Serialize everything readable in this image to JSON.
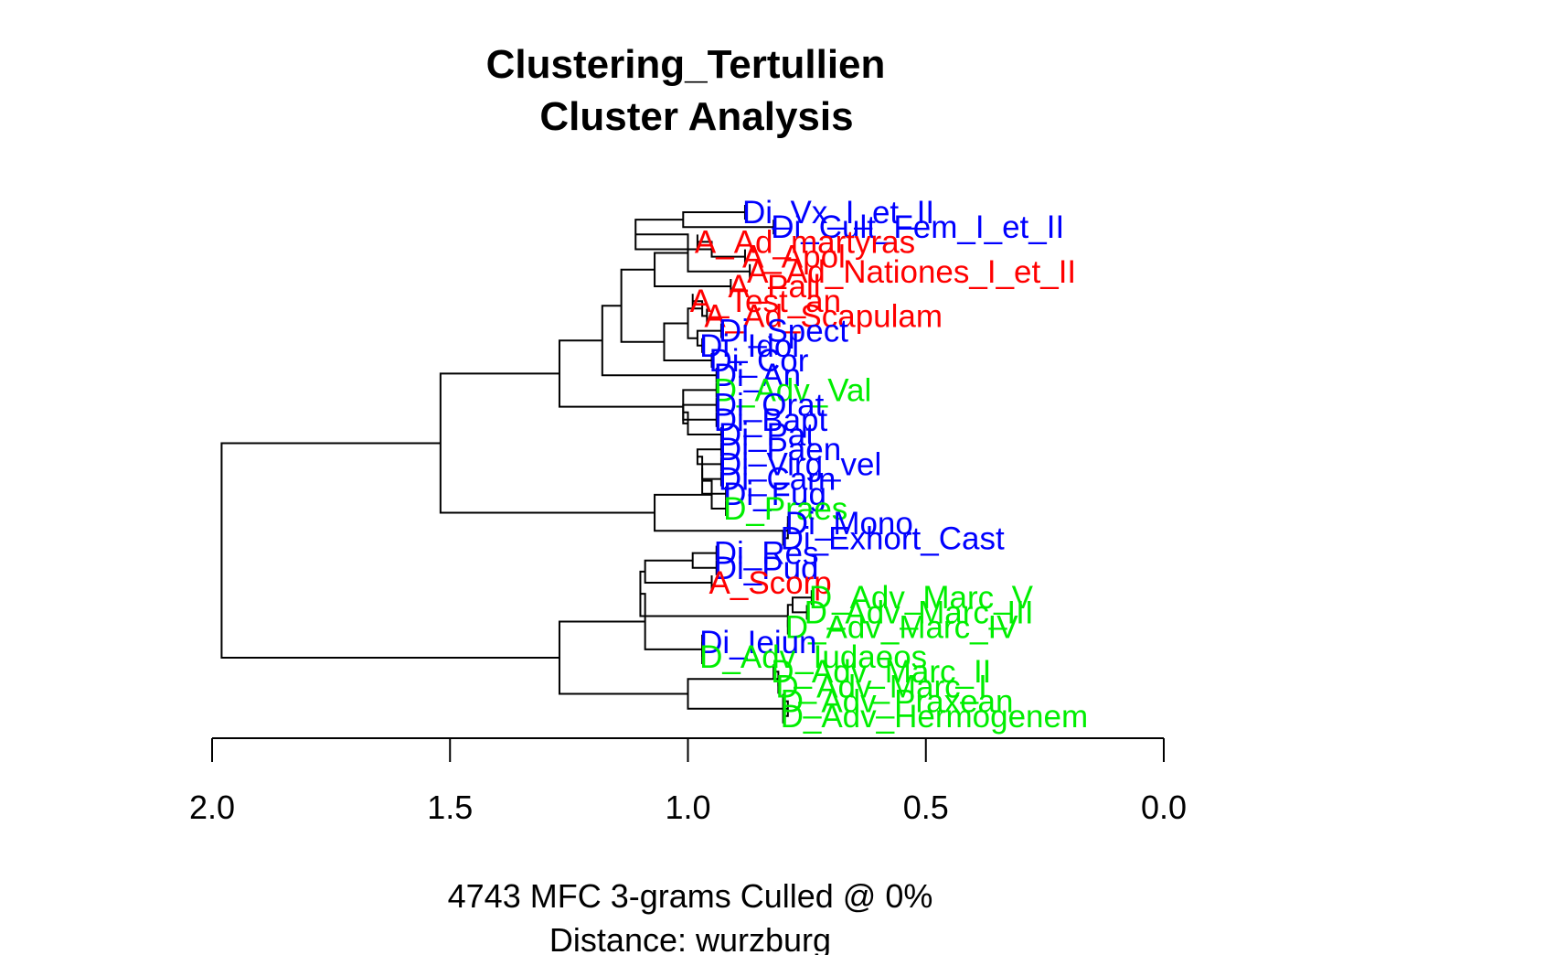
{
  "chart_data": {
    "type": "dendrogram",
    "title": "Clustering_Tertullien",
    "subtitle": "Cluster Analysis",
    "xlabel_lines": [
      "4743 MFC 3-grams Culled @ 0%",
      "Distance: wurzburg"
    ],
    "xlim": [
      2.0,
      0.0
    ],
    "ticks": [
      2.0,
      1.5,
      1.0,
      0.5,
      0.0
    ],
    "tick_labels": [
      "2.0",
      "1.5",
      "1.0",
      "0.5",
      "0.0"
    ],
    "colors": {
      "A": "#ff0000",
      "Di": "#0000ff",
      "D": "#00ee00"
    },
    "leaves": [
      {
        "label": "Di_Vx_I_et_II",
        "group": "Di",
        "height": 0.88
      },
      {
        "label": "Di_Cult_Fem_I_et_II",
        "group": "Di",
        "height": 0.82
      },
      {
        "label": "A_Ad_martyras",
        "group": "A",
        "height": 0.98
      },
      {
        "label": "A_Apol",
        "group": "A",
        "height": 0.88
      },
      {
        "label": "A_Ad_Nationes_I_et_II",
        "group": "A",
        "height": 0.87
      },
      {
        "label": "A_Pall",
        "group": "A",
        "height": 0.91
      },
      {
        "label": "A_Test_an",
        "group": "A",
        "height": 0.99
      },
      {
        "label": "A_Ad_Scapulam",
        "group": "A",
        "height": 0.96
      },
      {
        "label": "Di_Spect",
        "group": "Di",
        "height": 0.93
      },
      {
        "label": "Di_Idol",
        "group": "Di",
        "height": 0.97
      },
      {
        "label": "Di_Cor",
        "group": "Di",
        "height": 0.95
      },
      {
        "label": "Di_An",
        "group": "Di",
        "height": 0.94
      },
      {
        "label": "D_Adv_Val",
        "group": "D",
        "height": 0.94
      },
      {
        "label": "Di_Orat",
        "group": "Di",
        "height": 0.94
      },
      {
        "label": "Di_Bapt",
        "group": "Di",
        "height": 0.94
      },
      {
        "label": "Di_Pat",
        "group": "Di",
        "height": 0.93
      },
      {
        "label": "Di_Paen",
        "group": "Di",
        "height": 0.93
      },
      {
        "label": "Di_Virg_vel",
        "group": "Di",
        "height": 0.93
      },
      {
        "label": "Di_Carn",
        "group": "Di",
        "height": 0.93
      },
      {
        "label": "Di_Fug",
        "group": "Di",
        "height": 0.92
      },
      {
        "label": "D_Praes",
        "group": "D",
        "height": 0.92
      },
      {
        "label": "Di_Mono",
        "group": "Di",
        "height": 0.79
      },
      {
        "label": "Di_Exhort_Cast",
        "group": "Di",
        "height": 0.8
      },
      {
        "label": "Di_Res",
        "group": "Di",
        "height": 0.94
      },
      {
        "label": "Di_Pud",
        "group": "Di",
        "height": 0.94
      },
      {
        "label": "A_Scorp",
        "group": "A",
        "height": 0.95
      },
      {
        "label": "D_Adv_Marc_V",
        "group": "D",
        "height": 0.74
      },
      {
        "label": "D_Adv_Marc_III",
        "group": "D",
        "height": 0.75
      },
      {
        "label": "D_Adv_Marc_IV",
        "group": "D",
        "height": 0.79
      },
      {
        "label": "Di_Ieiun",
        "group": "Di",
        "height": 0.97
      },
      {
        "label": "D_Adv_Iudaeos",
        "group": "D",
        "height": 0.97
      },
      {
        "label": "D_Adv_Marc_II",
        "group": "D",
        "height": 0.82
      },
      {
        "label": "D_Adv_Marc_I",
        "group": "D",
        "height": 0.81
      },
      {
        "label": "D_Adv_Praxean",
        "group": "D",
        "height": 0.8
      },
      {
        "label": "D_Adv_Hermogenem",
        "group": "D",
        "height": 0.8
      }
    ],
    "merges": [
      {
        "height": 1.01,
        "a": "Di_Vx_I_et_II",
        "b": "Di_Cult_Fem_I_et_II"
      },
      {
        "height": 0.95,
        "a": "A_Ad_martyras",
        "b": "A_Apol"
      },
      {
        "height": 1.11,
        "a": 0,
        "b": 1
      },
      {
        "height": 1.0,
        "a": "A_Ad_Nationes_I_et_II",
        "b": 2
      },
      {
        "height": 1.07,
        "a": "A_Pall",
        "b": 3
      },
      {
        "height": 0.97,
        "a": "A_Test_an",
        "b": "A_Ad_Scapulam"
      },
      {
        "height": 0.98,
        "a": "Di_Spect",
        "b": "Di_Idol"
      },
      {
        "height": 1.0,
        "a": 5,
        "b": 6
      },
      {
        "height": 1.05,
        "a": "Di_Cor",
        "b": 7
      },
      {
        "height": 1.14,
        "a": 4,
        "b": 8
      },
      {
        "height": 1.18,
        "a": "Di_An",
        "b": 9
      },
      {
        "height": 1.01,
        "a": "Di_Orat",
        "b": "Di_Bapt"
      },
      {
        "height": 1.0,
        "a": 11,
        "b": "Di_Pat"
      },
      {
        "height": 1.01,
        "a": "D_Adv_Val",
        "b": 12
      },
      {
        "height": 1.27,
        "a": 10,
        "b": 13
      },
      {
        "height": 0.98,
        "a": "Di_Paen",
        "b": "Di_Virg_vel"
      },
      {
        "height": 0.97,
        "a": 15,
        "b": "Di_Carn"
      },
      {
        "height": 0.97,
        "a": 16,
        "b": "Di_Fug"
      },
      {
        "height": 0.95,
        "a": "D_Praes",
        "b": 17
      },
      {
        "height": 0.79,
        "a": "Di_Mono",
        "b": "Di_Exhort_Cast"
      },
      {
        "height": 1.07,
        "a": 18,
        "b": 19
      },
      {
        "height": 1.52,
        "a": 14,
        "b": 20
      },
      {
        "height": 0.99,
        "a": "Di_Res",
        "b": "Di_Pud"
      },
      {
        "height": 0.78,
        "a": "D_Adv_Marc_V",
        "b": "D_Adv_Marc_III"
      },
      {
        "height": 0.79,
        "a": 23,
        "b": "D_Adv_Marc_IV"
      },
      {
        "height": 1.09,
        "a": 22,
        "b": "A_Scorp"
      },
      {
        "height": 1.1,
        "a": 25,
        "b": 24
      },
      {
        "height": 0.97,
        "a": "Di_Ieiun",
        "b": "D_Adv_Iudaeos"
      },
      {
        "height": 1.09,
        "a": 26,
        "b": 27
      },
      {
        "height": 0.81,
        "a": "D_Adv_Marc_II",
        "b": "D_Adv_Marc_I"
      },
      {
        "height": 0.79,
        "a": "D_Adv_Praxean",
        "b": "D_Adv_Hermogenem"
      },
      {
        "height": 1.0,
        "a": 29,
        "b": 30
      },
      {
        "height": 1.27,
        "a": 28,
        "b": 31
      },
      {
        "height": 1.98,
        "a": 21,
        "b": 32
      }
    ]
  }
}
